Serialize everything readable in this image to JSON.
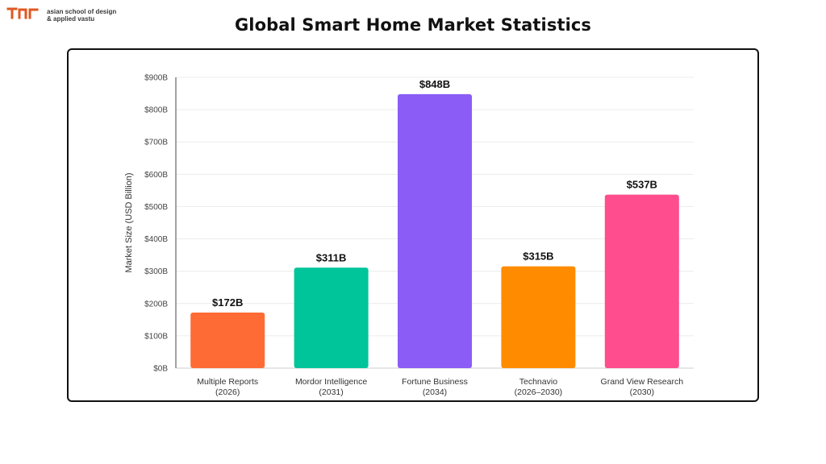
{
  "brand": {
    "line1": "asian school of design",
    "line2": "& applied vastu",
    "logo_color": "#e0571f"
  },
  "chart_data": {
    "type": "bar",
    "title": "Global Smart Home Market Statistics",
    "xlabel": "",
    "ylabel": "Market Size (USD Billion)",
    "ylim": [
      0,
      900
    ],
    "yticks": [
      0,
      100,
      200,
      300,
      400,
      500,
      600,
      700,
      800,
      900
    ],
    "ytick_labels": [
      "$0B",
      "$100B",
      "$200B",
      "$300B",
      "$400B",
      "$500B",
      "$600B",
      "$700B",
      "$800B",
      "$900B"
    ],
    "grid": true,
    "categories": [
      [
        "Multiple Reports",
        "(2026)"
      ],
      [
        "Mordor Intelligence",
        "(2031)"
      ],
      [
        "Fortune Business",
        "(2034)"
      ],
      [
        "Technavio",
        "(2026–2030)"
      ],
      [
        "Grand View Research",
        "(2030)"
      ]
    ],
    "values": [
      172,
      311,
      848,
      315,
      537
    ],
    "value_labels": [
      "$172B",
      "$311B",
      "$848B",
      "$315B",
      "$537B"
    ],
    "colors": [
      "#ff6b35",
      "#00c49a",
      "#8b5cf6",
      "#ff8c00",
      "#ff4d8d"
    ]
  }
}
